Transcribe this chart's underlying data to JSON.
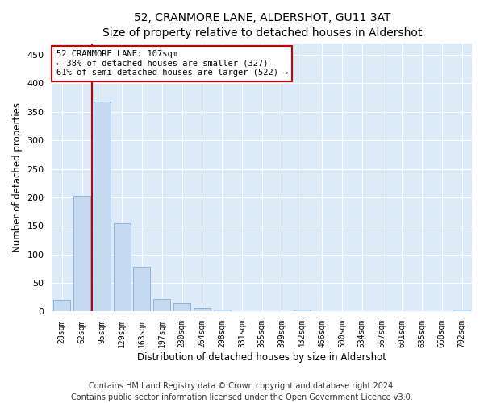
{
  "title": "52, CRANMORE LANE, ALDERSHOT, GU11 3AT",
  "subtitle": "Size of property relative to detached houses in Aldershot",
  "xlabel": "Distribution of detached houses by size in Aldershot",
  "ylabel": "Number of detached properties",
  "bar_labels": [
    "28sqm",
    "62sqm",
    "95sqm",
    "129sqm",
    "163sqm",
    "197sqm",
    "230sqm",
    "264sqm",
    "298sqm",
    "331sqm",
    "365sqm",
    "399sqm",
    "432sqm",
    "466sqm",
    "500sqm",
    "534sqm",
    "567sqm",
    "601sqm",
    "635sqm",
    "668sqm",
    "702sqm"
  ],
  "bar_values": [
    20,
    203,
    368,
    155,
    78,
    22,
    15,
    7,
    3,
    0,
    0,
    0,
    3,
    0,
    0,
    0,
    0,
    0,
    0,
    0,
    3
  ],
  "bar_color": "#c5d9f0",
  "bar_edge_color": "#8ab4d8",
  "vline_color": "#cc0000",
  "vline_x": 1.5,
  "annotation_text": "52 CRANMORE LANE: 107sqm\n← 38% of detached houses are smaller (327)\n61% of semi-detached houses are larger (522) →",
  "annotation_box_color": "#ffffff",
  "annotation_box_edge_color": "#cc0000",
  "ylim": [
    0,
    470
  ],
  "yticks": [
    0,
    50,
    100,
    150,
    200,
    250,
    300,
    350,
    400,
    450
  ],
  "plot_background_color": "#ddeaf7",
  "grid_color": "#ffffff",
  "footer": "Contains HM Land Registry data © Crown copyright and database right 2024.\nContains public sector information licensed under the Open Government Licence v3.0.",
  "title_fontsize": 10,
  "xlabel_fontsize": 8.5,
  "ylabel_fontsize": 8.5,
  "tick_fontsize": 8,
  "xtick_fontsize": 7,
  "footer_fontsize": 7,
  "annot_fontsize": 7.5
}
